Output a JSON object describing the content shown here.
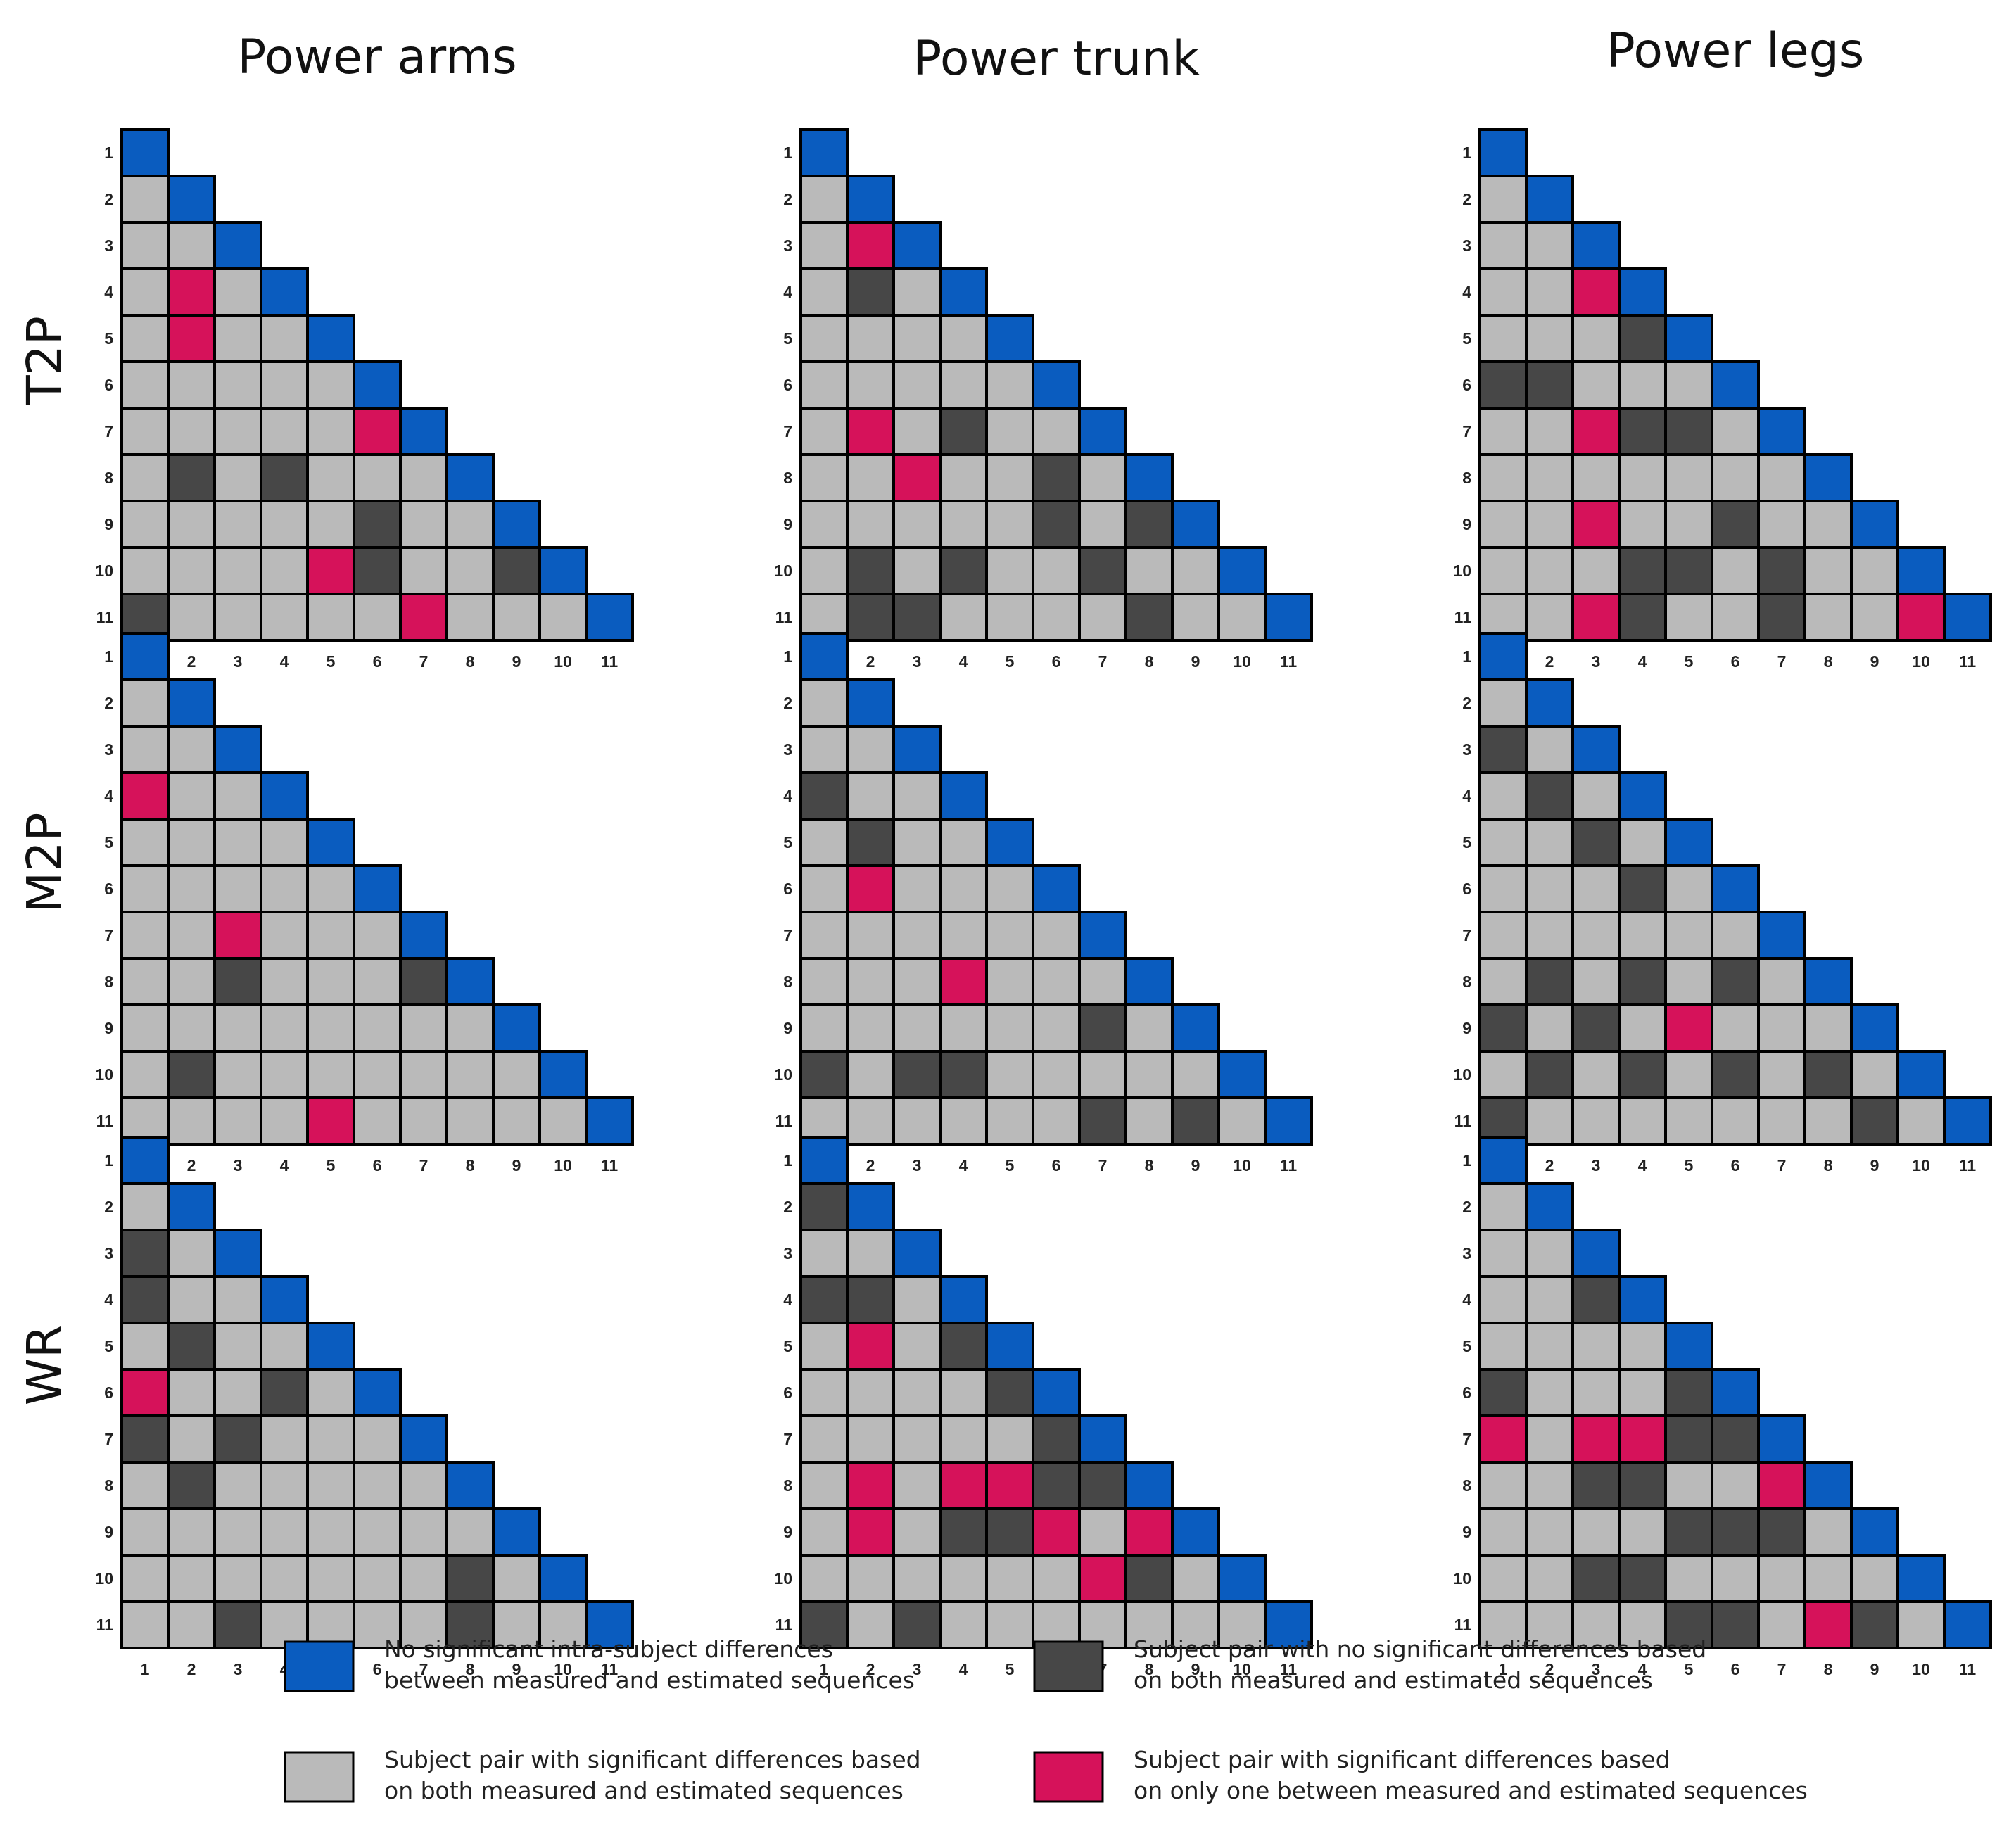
{
  "chart_data": {
    "type": "heatmap",
    "subjects": [
      "1",
      "2",
      "3",
      "4",
      "5",
      "6",
      "7",
      "8",
      "9",
      "10",
      "11"
    ],
    "columns": [
      "Power arms",
      "Power trunk",
      "Power legs"
    ],
    "rows": [
      "T2P",
      "M2P",
      "WR"
    ],
    "categories": {
      "B": {
        "color": "#0a5cbf",
        "label_lines": [
          "No significant intra-subject differences",
          "between measured and estimated sequences"
        ]
      },
      "D": {
        "color": "#474747",
        "label_lines": [
          "Subject pair with no significant differences based",
          "on both measured and estimated sequences"
        ]
      },
      "L": {
        "color": "#bababa",
        "label_lines": [
          "Subject pair with significant differences based",
          "on both measured and estimated sequences"
        ]
      },
      "M": {
        "color": "#d6125a",
        "label_lines": [
          "Subject pair with significant differences based",
          "on only one between measured and estimated sequences"
        ]
      }
    },
    "panels": [
      {
        "row": "T2P",
        "col": "Power arms",
        "matrix": [
          "B",
          "LB",
          "LLB",
          "LMLB",
          "LMLLB",
          "LLLLLB",
          "LLLLLMB",
          "LDLDLLLB",
          "LLLLLDLLB",
          "LLLLMDLLDB",
          "DLLLLLMLLLB"
        ]
      },
      {
        "row": "T2P",
        "col": "Power trunk",
        "matrix": [
          "B",
          "LB",
          "LMB",
          "LDLB",
          "LLLLB",
          "LLLLLB",
          "LMLDLLB",
          "LLMLLDLB",
          "LLLLLDLDB",
          "LDLDLLDLLB",
          "LDDLLLLDLLB"
        ]
      },
      {
        "row": "T2P",
        "col": "Power legs",
        "matrix": [
          "B",
          "LB",
          "LLB",
          "LLMB",
          "LLLDB",
          "DDLLLB",
          "LLMDDLB",
          "LLLLLLLB",
          "LLMLLDLLB",
          "LLLDDLDLLB",
          "LLMDLLDLLMB"
        ]
      },
      {
        "row": "M2P",
        "col": "Power arms",
        "matrix": [
          "B",
          "LB",
          "LLB",
          "MLLB",
          "LLLLB",
          "LLLLLB",
          "LLMLLLB",
          "LLDLLLDB",
          "LLLLLLLLB",
          "LDLLLLLLLB",
          "LLLLMLLLLLB"
        ]
      },
      {
        "row": "M2P",
        "col": "Power trunk",
        "matrix": [
          "B",
          "LB",
          "LLB",
          "DLLB",
          "LDLLB",
          "LMLLLB",
          "LLLLLLB",
          "LLLMLLLB",
          "LLLLLLDLB",
          "DLDDLLLLLB",
          "LLLLLLDLDLB"
        ]
      },
      {
        "row": "M2P",
        "col": "Power legs",
        "matrix": [
          "B",
          "LB",
          "DLB",
          "LDLB",
          "LLDLB",
          "LLLDLB",
          "LLLLLLB",
          "LDLDLDLB",
          "DLDLMLLLB",
          "LDLDLDLDLB",
          "DLLLLLLLDLB"
        ]
      },
      {
        "row": "WR",
        "col": "Power arms",
        "matrix": [
          "B",
          "LB",
          "DLB",
          "DLLB",
          "LDLLB",
          "MLLDLB",
          "DLDLLLB",
          "LDLLLLLB",
          "LLLLLLLLB",
          "LLLLLLLDLB",
          "LLDLLLLDLLB"
        ]
      },
      {
        "row": "WR",
        "col": "Power trunk",
        "matrix": [
          "B",
          "DB",
          "LLB",
          "DDLB",
          "LMLDB",
          "LLLLDB",
          "LLLLLDB",
          "LMLMMDDB",
          "LMLDDMLMB",
          "LLLLLLMDLB",
          "DLDLLLLLLLB"
        ]
      },
      {
        "row": "WR",
        "col": "Power legs",
        "matrix": [
          "B",
          "LB",
          "LLB",
          "LLDB",
          "LLLLB",
          "DLLLDB",
          "MLMMDDB",
          "LLDDLLMB",
          "LLLLDDDLB",
          "LLDDLLLLLB",
          "LLLLDDLMDLB"
        ]
      }
    ]
  }
}
